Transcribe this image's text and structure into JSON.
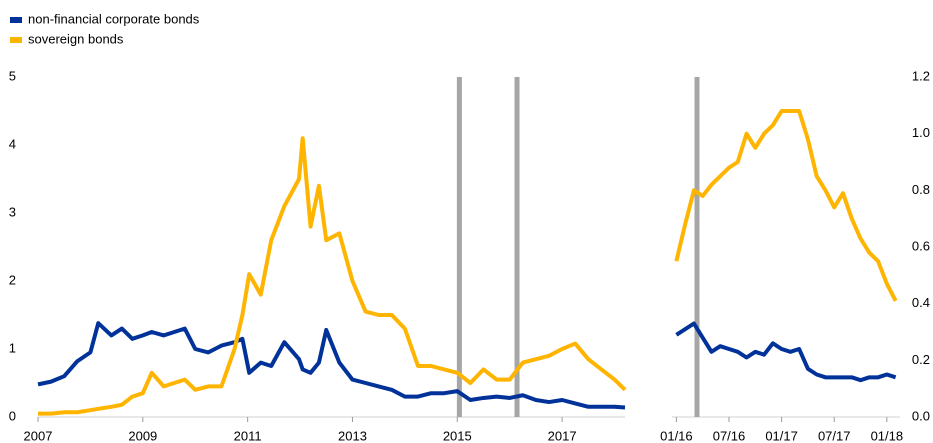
{
  "chart_data": [
    {
      "type": "line",
      "x": [
        2007,
        2007.25,
        2007.5,
        2007.75,
        2008,
        2008.15,
        2008.4,
        2008.6,
        2008.8,
        2009,
        2009.17,
        2009.4,
        2009.6,
        2009.8,
        2010,
        2010.25,
        2010.5,
        2010.75,
        2010.9,
        2011.03,
        2011.25,
        2011.45,
        2011.7,
        2011.98,
        2012.05,
        2012.2,
        2012.36,
        2012.5,
        2012.75,
        2013,
        2013.25,
        2013.5,
        2013.75,
        2014,
        2014.25,
        2014.5,
        2014.75,
        2015,
        2015.25,
        2015.5,
        2015.75,
        2016,
        2016.25,
        2016.5,
        2016.75,
        2017,
        2017.25,
        2017.5,
        2017.75,
        2018,
        2018.2
      ],
      "series": [
        {
          "name": "non-financial corporate bonds",
          "color": "#003299",
          "values": [
            0.48,
            0.52,
            0.6,
            0.82,
            0.95,
            1.38,
            1.2,
            1.3,
            1.15,
            1.2,
            1.25,
            1.2,
            1.25,
            1.3,
            1.0,
            0.95,
            1.05,
            1.1,
            1.15,
            0.65,
            0.8,
            0.75,
            1.1,
            0.85,
            0.7,
            0.65,
            0.8,
            1.28,
            0.8,
            0.55,
            0.5,
            0.45,
            0.4,
            0.3,
            0.3,
            0.35,
            0.35,
            0.38,
            0.25,
            0.28,
            0.3,
            0.28,
            0.32,
            0.25,
            0.22,
            0.25,
            0.2,
            0.15,
            0.15,
            0.15,
            0.14
          ]
        },
        {
          "name": "sovereign bonds",
          "color": "#ffb400",
          "values": [
            0.05,
            0.05,
            0.07,
            0.07,
            0.1,
            0.12,
            0.15,
            0.18,
            0.3,
            0.35,
            0.65,
            0.45,
            0.5,
            0.55,
            0.4,
            0.45,
            0.45,
            1.0,
            1.5,
            2.1,
            1.8,
            2.6,
            3.1,
            3.5,
            4.1,
            2.8,
            3.4,
            2.6,
            2.7,
            2.0,
            1.55,
            1.5,
            1.5,
            1.3,
            0.75,
            0.75,
            0.7,
            0.65,
            0.5,
            0.7,
            0.55,
            0.55,
            0.8,
            0.85,
            0.9,
            1.0,
            1.08,
            0.85,
            0.7,
            0.55,
            0.4
          ]
        }
      ],
      "xlim": [
        2007,
        2018.2
      ],
      "xticks": [
        2007,
        2009,
        2011,
        2013,
        2015,
        2017
      ],
      "ylim": [
        0,
        5
      ],
      "yticks": [
        0,
        1,
        2,
        3,
        4,
        5
      ],
      "vlines": [
        2015.04,
        2016.14
      ],
      "yaxis_side": "left"
    },
    {
      "type": "line",
      "x": [
        0,
        1,
        2,
        3,
        4,
        5,
        6,
        7,
        8,
        9,
        10,
        11,
        12,
        13,
        14,
        15,
        16,
        17,
        18,
        19,
        20,
        21,
        22,
        23,
        24,
        25
      ],
      "series": [
        {
          "color": "#003299",
          "values": [
            0.29,
            0.31,
            0.33,
            0.28,
            0.23,
            0.25,
            0.24,
            0.23,
            0.21,
            0.23,
            0.22,
            0.26,
            0.24,
            0.23,
            0.24,
            0.17,
            0.15,
            0.14,
            0.14,
            0.14,
            0.14,
            0.13,
            0.14,
            0.14,
            0.15,
            0.14
          ]
        },
        {
          "color": "#ffb400",
          "values": [
            0.55,
            0.68,
            0.8,
            0.78,
            0.82,
            0.85,
            0.88,
            0.9,
            1.0,
            0.95,
            1.0,
            1.03,
            1.08,
            1.08,
            1.08,
            0.98,
            0.85,
            0.8,
            0.74,
            0.79,
            0.7,
            0.63,
            0.58,
            0.55,
            0.47,
            0.41
          ]
        }
      ],
      "xlim": [
        -0.5,
        25.5
      ],
      "xticks": [
        {
          "value": 0,
          "label": "01/16"
        },
        {
          "value": 6,
          "label": "07/16"
        },
        {
          "value": 12,
          "label": "01/17"
        },
        {
          "value": 18,
          "label": "07/17"
        },
        {
          "value": 24,
          "label": "01/18"
        }
      ],
      "ylim": [
        0,
        1.2
      ],
      "yticks": [
        {
          "value": 0,
          "label": "0.0"
        },
        0.2,
        0.4,
        0.6,
        0.8,
        {
          "value": 1,
          "label": "1.0"
        },
        1.2
      ],
      "vlines": [
        2.35
      ],
      "yaxis_side": "right"
    }
  ]
}
